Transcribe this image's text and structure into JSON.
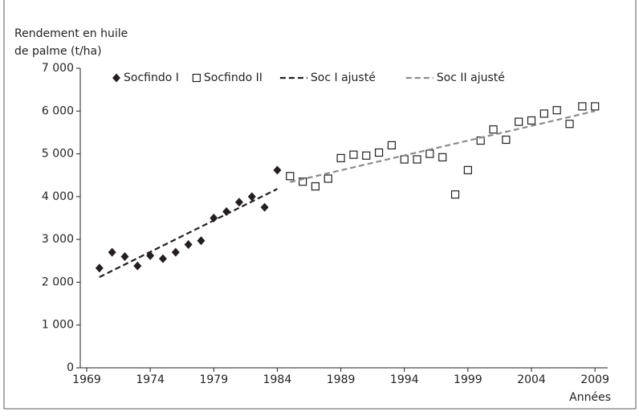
{
  "chart_data": {
    "type": "scatter",
    "ylabel": [
      "Rendement en huile",
      "de palme (t/ha)"
    ],
    "xlabel": "Années",
    "xlim": [
      1969,
      2010
    ],
    "xticks": [
      1969,
      1974,
      1979,
      1984,
      1989,
      1994,
      1999,
      2004,
      2009
    ],
    "ylim": [
      0,
      7000
    ],
    "yticks": [
      0,
      {
        "value": 1000,
        "label": "1 000"
      },
      {
        "value": 2000,
        "label": "2 000"
      },
      {
        "value": 3000,
        "label": "3 000"
      },
      {
        "value": 4000,
        "label": "4 000"
      },
      {
        "value": 5000,
        "label": "5 000"
      },
      {
        "value": 6000,
        "label": "6 000"
      },
      {
        "value": 7000,
        "label": "7 000"
      }
    ],
    "legend": "top",
    "series": [
      {
        "name": "Socfindo I",
        "type": "scatter",
        "marker": "diamond",
        "color": "#231f20",
        "x": [
          1970,
          1971,
          1972,
          1973,
          1974,
          1975,
          1976,
          1977,
          1978,
          1979,
          1980,
          1981,
          1982,
          1983,
          1984
        ],
        "values": [
          2330,
          2700,
          2600,
          2380,
          2620,
          2550,
          2700,
          2880,
          2970,
          3500,
          3650,
          3870,
          4000,
          3750,
          4620
        ]
      },
      {
        "name": "Socfindo II",
        "type": "scatter",
        "marker": "square",
        "color": "#231f20",
        "x": [
          1985,
          1986,
          1987,
          1988,
          1989,
          1990,
          1991,
          1992,
          1993,
          1994,
          1995,
          1996,
          1997,
          1998,
          1999,
          2000,
          2001,
          2002,
          2003,
          2004,
          2005,
          2006,
          2007,
          2008,
          2009
        ],
        "values": [
          4480,
          4350,
          4240,
          4420,
          4900,
          4980,
          4960,
          5030,
          5200,
          4870,
          4870,
          5000,
          4920,
          4050,
          4620,
          5310,
          5570,
          5330,
          5750,
          5780,
          5940,
          6020,
          5700,
          6110,
          6110
        ]
      },
      {
        "name": "Soc I ajusté",
        "type": "line",
        "style": "dashed",
        "color": "#231f20",
        "x": [
          1970,
          1984
        ],
        "values": [
          2120,
          4180
        ]
      },
      {
        "name": "Soc II ajusté",
        "type": "line",
        "style": "dashed",
        "color": "#8c8c8c",
        "x": [
          1985,
          2009
        ],
        "values": [
          4340,
          6000
        ]
      }
    ]
  }
}
